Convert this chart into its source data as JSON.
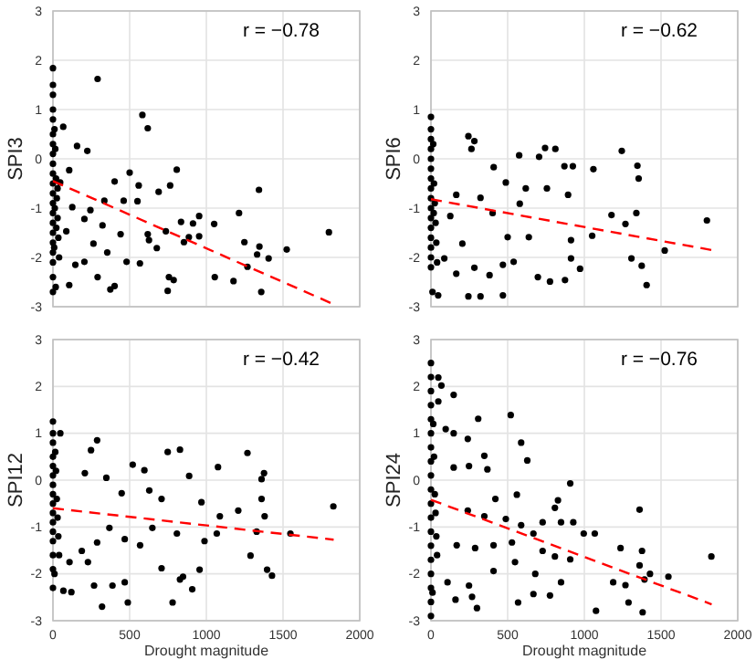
{
  "chart_data": [
    {
      "type": "scatter",
      "ylabel": "SPI3",
      "annotations": [
        "r = −0.78"
      ],
      "xlim": [
        0,
        2000
      ],
      "xticks": [
        0,
        500,
        1000,
        1500,
        2000
      ],
      "ylim": [
        -3,
        3
      ],
      "yticks": [
        -3,
        -2,
        -1,
        0,
        1,
        2,
        3
      ],
      "grid": true,
      "tick_labels": "y",
      "series": [
        {
          "marker": "circle",
          "color": "#000000",
          "x": [
            291,
            583,
            618,
            67,
            157,
            224,
            500,
            807,
            764,
            559,
            689,
            402,
            335,
            461,
            551,
            1343,
            1213,
            1051,
            953,
            835,
            913,
            736,
            618,
            626,
            886,
            854,
            953,
            1248,
            1346,
            1331,
            1406,
            1524,
            1799,
            1358,
            1268,
            1177,
            1055,
            756,
            748,
            787,
            677,
            402,
            374,
            291,
            205,
            146,
            106,
            480,
            567,
            354,
            264,
            441,
            323,
            205,
            126,
            87,
            244,
            47,
            106,
            0,
            0,
            0,
            0,
            0,
            0,
            0,
            0,
            0,
            0,
            0,
            0,
            0,
            0,
            0,
            0,
            0,
            0,
            0,
            0,
            0,
            15,
            20,
            25,
            30,
            35,
            40,
            18,
            10,
            12,
            8,
            30,
            22
          ],
          "values": [
            1.62,
            0.89,
            0.62,
            0.65,
            0.26,
            0.16,
            -0.28,
            -0.22,
            -0.54,
            -0.54,
            -0.67,
            -0.46,
            -0.85,
            -0.85,
            -0.86,
            -0.63,
            -1.1,
            -1.32,
            -1.16,
            -1.28,
            -1.31,
            -1.47,
            -1.53,
            -1.65,
            -1.59,
            -1.69,
            -1.57,
            -1.69,
            -1.78,
            -1.94,
            -2.02,
            -1.84,
            -1.49,
            -2.7,
            -2.19,
            -2.48,
            -2.4,
            -2.4,
            -2.68,
            -2.46,
            -1.81,
            -2.58,
            -2.65,
            -2.4,
            -2.09,
            -2.15,
            -2.56,
            -2.09,
            -2.12,
            -1.9,
            -1.72,
            -1.53,
            -1.35,
            -1.22,
            -0.98,
            -1.47,
            -1.04,
            -0.48,
            -0.23,
            1.84,
            1.5,
            1.3,
            1.0,
            0.8,
            0.5,
            0.3,
            0.1,
            -0.1,
            -0.3,
            -0.5,
            -0.7,
            -0.9,
            -1.1,
            -1.3,
            -1.5,
            -1.7,
            -1.9,
            -2.1,
            -2.4,
            -2.7,
            0.2,
            -0.4,
            -0.8,
            -1.2,
            -1.6,
            -2.0,
            -2.6,
            0.6,
            -1.0,
            -1.8,
            -0.6,
            -1.4
          ]
        },
        {
          "type": "line",
          "color": "#ff0000",
          "line_style": "dashed",
          "x": [
            0,
            1830
          ],
          "values": [
            -0.45,
            -2.95
          ]
        }
      ]
    },
    {
      "type": "scatter",
      "ylabel": "SPI6",
      "annotations": [
        "r = −0.62"
      ],
      "xlim": [
        0,
        2000
      ],
      "xticks": [
        0,
        500,
        1000,
        1500,
        2000
      ],
      "ylim": [
        -3,
        3
      ],
      "yticks": [
        -3,
        -2,
        -1,
        0,
        1,
        2,
        3
      ],
      "grid": true,
      "tick_labels": "y",
      "series": [
        {
          "marker": "circle",
          "color": "#000000",
          "x": [
            244,
            283,
            264,
            575,
            705,
            811,
            744,
            870,
            925,
            1059,
            1244,
            1346,
            1354,
            409,
            488,
            618,
            756,
            894,
            579,
            402,
            323,
            165,
            126,
            1177,
            1339,
            1268,
            1799,
            1051,
            913,
            638,
            500,
            1524,
            1307,
            1374,
            1406,
            972,
            913,
            776,
            874,
            697,
            539,
            469,
            469,
            323,
            244,
            283,
            382,
            165,
            87,
            205,
            47,
            0,
            0,
            0,
            0,
            0,
            0,
            0,
            0,
            0,
            0,
            0,
            0,
            0,
            0,
            0,
            0,
            15,
            20,
            25,
            30,
            35,
            40,
            10,
            18
          ],
          "values": [
            0.46,
            0.36,
            0.2,
            0.07,
            0.04,
            0.2,
            0.22,
            -0.15,
            -0.15,
            -0.21,
            0.16,
            -0.14,
            -0.4,
            -0.17,
            -0.48,
            -0.6,
            -0.6,
            -0.73,
            -0.91,
            -1.1,
            -0.79,
            -0.73,
            -1.16,
            -1.14,
            -1.1,
            -1.32,
            -1.25,
            -1.56,
            -1.65,
            -1.59,
            -1.59,
            -1.86,
            -2.02,
            -2.17,
            -2.56,
            -2.23,
            -2.02,
            -2.49,
            -2.46,
            -2.4,
            -2.09,
            -2.15,
            -2.77,
            -2.79,
            -2.79,
            -2.21,
            -2.36,
            -2.33,
            -2.02,
            -1.72,
            -2.77,
            0.85,
            0.6,
            0.4,
            0.2,
            0.0,
            -0.2,
            -0.4,
            -0.6,
            -0.8,
            -1.0,
            -1.2,
            -1.4,
            -1.6,
            -1.8,
            -2.0,
            -2.2,
            0.3,
            -0.5,
            -0.9,
            -1.3,
            -1.7,
            -2.1,
            -2.7,
            -1.1
          ]
        },
        {
          "type": "line",
          "color": "#ff0000",
          "line_style": "dashed",
          "x": [
            0,
            1830
          ],
          "values": [
            -0.82,
            -1.85
          ]
        }
      ]
    },
    {
      "type": "scatter",
      "ylabel": "SPI12",
      "xlabel": "Drought magnitude",
      "annotations": [
        "r = −0.42"
      ],
      "xlim": [
        0,
        2000
      ],
      "xticks": [
        0,
        500,
        1000,
        1500,
        2000
      ],
      "ylim": [
        -3,
        3
      ],
      "yticks": [
        -3,
        -2,
        -1,
        0,
        1,
        2,
        3
      ],
      "grid": true,
      "series": [
        {
          "marker": "circle",
          "color": "#000000",
          "x": [
            288,
            748,
            828,
            1076,
            1268,
            1376,
            1360,
            520,
            596,
            348,
            248,
            48,
            208,
            888,
            628,
            708,
            448,
            968,
            1088,
            1208,
            1360,
            1380,
            1828,
            1548,
            1328,
            1068,
            988,
            808,
            648,
            568,
            468,
            368,
            288,
            188,
            108,
            228,
            708,
            1288,
            1396,
            1428,
            828,
            848,
            908,
            956,
            468,
            388,
            268,
            120,
            68,
            320,
            488,
            780,
            0,
            0,
            0,
            0,
            0,
            0,
            0,
            0,
            0,
            0,
            0,
            0,
            0,
            0,
            0,
            0,
            15,
            20,
            25,
            30,
            35,
            40,
            10
          ],
          "values": [
            0.85,
            0.6,
            0.65,
            0.28,
            0.58,
            0.15,
            0.02,
            0.33,
            0.21,
            0.05,
            0.64,
            1.0,
            0.15,
            0.09,
            -0.22,
            -0.4,
            -0.28,
            -0.47,
            -0.77,
            -0.65,
            -0.4,
            -0.77,
            -0.56,
            -1.14,
            -1.1,
            -1.14,
            -1.3,
            -1.14,
            -1.02,
            -1.39,
            -1.26,
            -1.02,
            -1.33,
            -1.51,
            -1.75,
            -1.75,
            -1.88,
            -1.61,
            -1.91,
            -2.04,
            -2.12,
            -2.06,
            -2.33,
            -1.91,
            -2.18,
            -2.25,
            -2.25,
            -2.39,
            -2.36,
            -2.7,
            -2.61,
            -2.61,
            1.25,
            1.0,
            0.8,
            0.5,
            0.3,
            0.1,
            -0.1,
            -0.3,
            -0.5,
            -0.7,
            -0.9,
            -1.1,
            -1.3,
            -1.6,
            -1.9,
            -2.3,
            0.6,
            0.2,
            -0.4,
            -0.8,
            -1.2,
            -1.6,
            -2.0
          ]
        },
        {
          "type": "line",
          "color": "#ff0000",
          "line_style": "dashed",
          "x": [
            0,
            1830
          ],
          "values": [
            -0.6,
            -1.27
          ]
        }
      ]
    },
    {
      "type": "scatter",
      "ylabel": "SPI24",
      "xlabel": "Drought magnitude",
      "annotations": [
        "r = −0.76"
      ],
      "xlim": [
        0,
        2000
      ],
      "xticks": [
        0,
        500,
        1000,
        1500,
        2000
      ],
      "ylim": [
        -3,
        3
      ],
      "yticks": [
        -3,
        -2,
        -1,
        0,
        1,
        2,
        3
      ],
      "grid": true,
      "series": [
        {
          "marker": "circle",
          "color": "#000000",
          "x": [
            0,
            48,
            68,
            148,
            48,
            96,
            148,
            308,
            520,
            240,
            588,
            628,
            348,
            368,
            248,
            148,
            908,
            560,
            420,
            828,
            808,
            848,
            928,
            728,
            588,
            488,
            348,
            240,
            1360,
            996,
            1068,
            668,
            528,
            408,
            288,
            168,
            1236,
            1376,
            1828,
            908,
            808,
            728,
            548,
            1360,
            1428,
            1548,
            1188,
            1268,
            1392,
            848,
            680,
            408,
            248,
            108,
            160,
            268,
            668,
            776,
            568,
            300,
            1076,
            1288,
            1380,
            0,
            0,
            0,
            0,
            0,
            0,
            0,
            0,
            0,
            0,
            0,
            0,
            0,
            0,
            0,
            0,
            0,
            0,
            15,
            20,
            25,
            30,
            35,
            40,
            10
          ],
          "values": [
            2.5,
            2.19,
            2.02,
            1.82,
            1.68,
            1.09,
            1.0,
            1.31,
            1.39,
            0.88,
            0.8,
            0.42,
            0.52,
            0.23,
            0.3,
            0.27,
            -0.07,
            -0.31,
            -0.4,
            -0.43,
            -0.59,
            -0.9,
            -0.9,
            -0.9,
            -0.96,
            -0.83,
            -0.77,
            -0.65,
            -0.63,
            -1.14,
            -1.14,
            -1.14,
            -1.33,
            -1.39,
            -1.45,
            -1.39,
            -1.45,
            -1.51,
            -1.63,
            -1.69,
            -1.63,
            -1.51,
            -1.75,
            -1.82,
            -2.0,
            -2.06,
            -2.18,
            -2.24,
            -2.12,
            -2.18,
            -2.0,
            -1.94,
            -2.25,
            -2.18,
            -2.55,
            -2.49,
            -2.43,
            -2.46,
            -2.61,
            -2.73,
            -2.79,
            -2.61,
            -2.82,
            2.2,
            1.9,
            1.6,
            1.3,
            1.0,
            0.7,
            0.4,
            0.1,
            -0.2,
            -0.5,
            -0.8,
            -1.1,
            -1.4,
            -1.7,
            -2.0,
            -2.3,
            -2.6,
            -2.9,
            1.2,
            0.5,
            -0.3,
            -0.7,
            -1.2,
            -1.6,
            -2.4
          ]
        },
        {
          "type": "line",
          "color": "#ff0000",
          "line_style": "dashed",
          "x": [
            0,
            1830
          ],
          "values": [
            -0.42,
            -2.65
          ]
        }
      ]
    }
  ]
}
